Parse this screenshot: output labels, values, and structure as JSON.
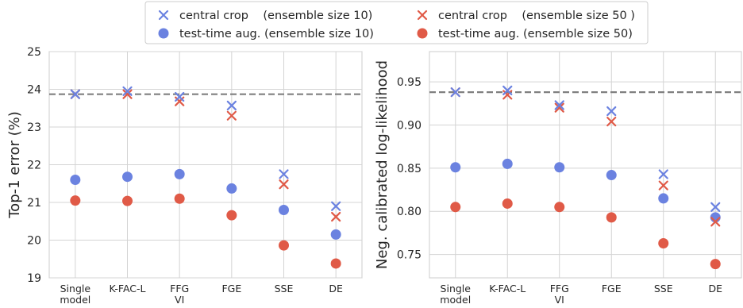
{
  "legend": {
    "entries": [
      {
        "label": "central crop    (ensemble size 10)",
        "marker": "x",
        "color": "#6b82e0"
      },
      {
        "label": "test-time aug. (ensemble size 10)",
        "marker": "o",
        "color": "#6b82e0"
      },
      {
        "label": "central crop    (ensemble size 50 )",
        "marker": "x",
        "color": "#e05a47"
      },
      {
        "label": "test-time aug. (ensemble size 50)",
        "marker": "o",
        "color": "#e05a47"
      }
    ]
  },
  "colors": {
    "size10": "#6b82e0",
    "size50": "#e05a47",
    "reference": "#808080",
    "grid": "#d4d4d4"
  },
  "chart_data": [
    {
      "type": "scatter",
      "ylabel": "Top-1 error (%)",
      "xlabel": "",
      "categories": [
        "Single\nmodel",
        "K-FAC-L",
        "FFG\nVI",
        "FGE",
        "SSE",
        "DE"
      ],
      "ylim": [
        19,
        25
      ],
      "yticks": [
        "19",
        "20",
        "21",
        "22",
        "23",
        "24",
        "25"
      ],
      "reference_line": 23.87,
      "grid": true,
      "series": [
        {
          "name": "central crop    (ensemble size 10)",
          "marker": "x",
          "values": [
            23.87,
            23.95,
            23.8,
            23.57,
            21.75,
            20.9
          ]
        },
        {
          "name": "test-time aug. (ensemble size 10)",
          "marker": "o",
          "values": [
            21.6,
            21.68,
            21.75,
            21.37,
            20.8,
            20.15
          ]
        },
        {
          "name": "central crop    (ensemble size 50 )",
          "marker": "x",
          "values": [
            23.87,
            23.87,
            23.68,
            23.3,
            21.48,
            20.62
          ]
        },
        {
          "name": "test-time aug. (ensemble size 50)",
          "marker": "o",
          "values": [
            21.05,
            21.04,
            21.1,
            20.66,
            19.86,
            19.38
          ]
        }
      ]
    },
    {
      "type": "scatter",
      "ylabel": "Neg. calibrated log-likelihood",
      "xlabel": "",
      "categories": [
        "Single\nmodel",
        "K-FAC-L",
        "FFG\nVI",
        "FGE",
        "SSE",
        "DE"
      ],
      "ylim": [
        0.723,
        0.985
      ],
      "yticks": [
        "0.75",
        "0.80",
        "0.85",
        "0.90",
        "0.95"
      ],
      "reference_line": 0.938,
      "grid": true,
      "series": [
        {
          "name": "central crop    (ensemble size 10)",
          "marker": "x",
          "values": [
            0.938,
            0.94,
            0.923,
            0.916,
            0.843,
            0.805
          ]
        },
        {
          "name": "test-time aug. (ensemble size 10)",
          "marker": "o",
          "values": [
            0.851,
            0.855,
            0.851,
            0.842,
            0.815,
            0.793
          ]
        },
        {
          "name": "central crop    (ensemble size 50 )",
          "marker": "x",
          "values": [
            0.938,
            0.935,
            0.92,
            0.904,
            0.83,
            0.788
          ]
        },
        {
          "name": "test-time aug. (ensemble size 50)",
          "marker": "o",
          "values": [
            0.805,
            0.809,
            0.805,
            0.793,
            0.763,
            0.739
          ]
        }
      ]
    }
  ]
}
